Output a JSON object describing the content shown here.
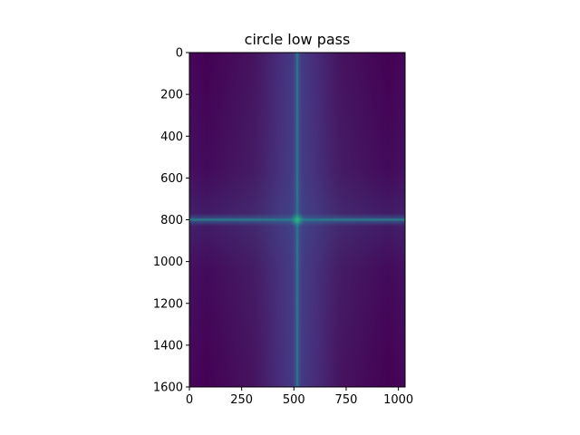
{
  "chart_data": {
    "type": "heatmap",
    "title": "circle low pass",
    "xlabel": "",
    "ylabel": "",
    "xlim": [
      0,
      1032
    ],
    "ylim": [
      1600,
      0
    ],
    "y_inverted": true,
    "x_ticks": [
      0,
      250,
      500,
      750,
      1000
    ],
    "y_ticks": [
      0,
      200,
      400,
      600,
      800,
      1000,
      1200,
      1400,
      1600
    ],
    "colormap": "viridis",
    "grid": false,
    "legend": "none",
    "peak": {
      "x": 516,
      "y": 800
    },
    "colors": {
      "background_edge": "#440154",
      "background_mid": "#472d7b",
      "cross_line": "#2c728e",
      "peak": "#22a884",
      "axis": "#000000"
    }
  }
}
